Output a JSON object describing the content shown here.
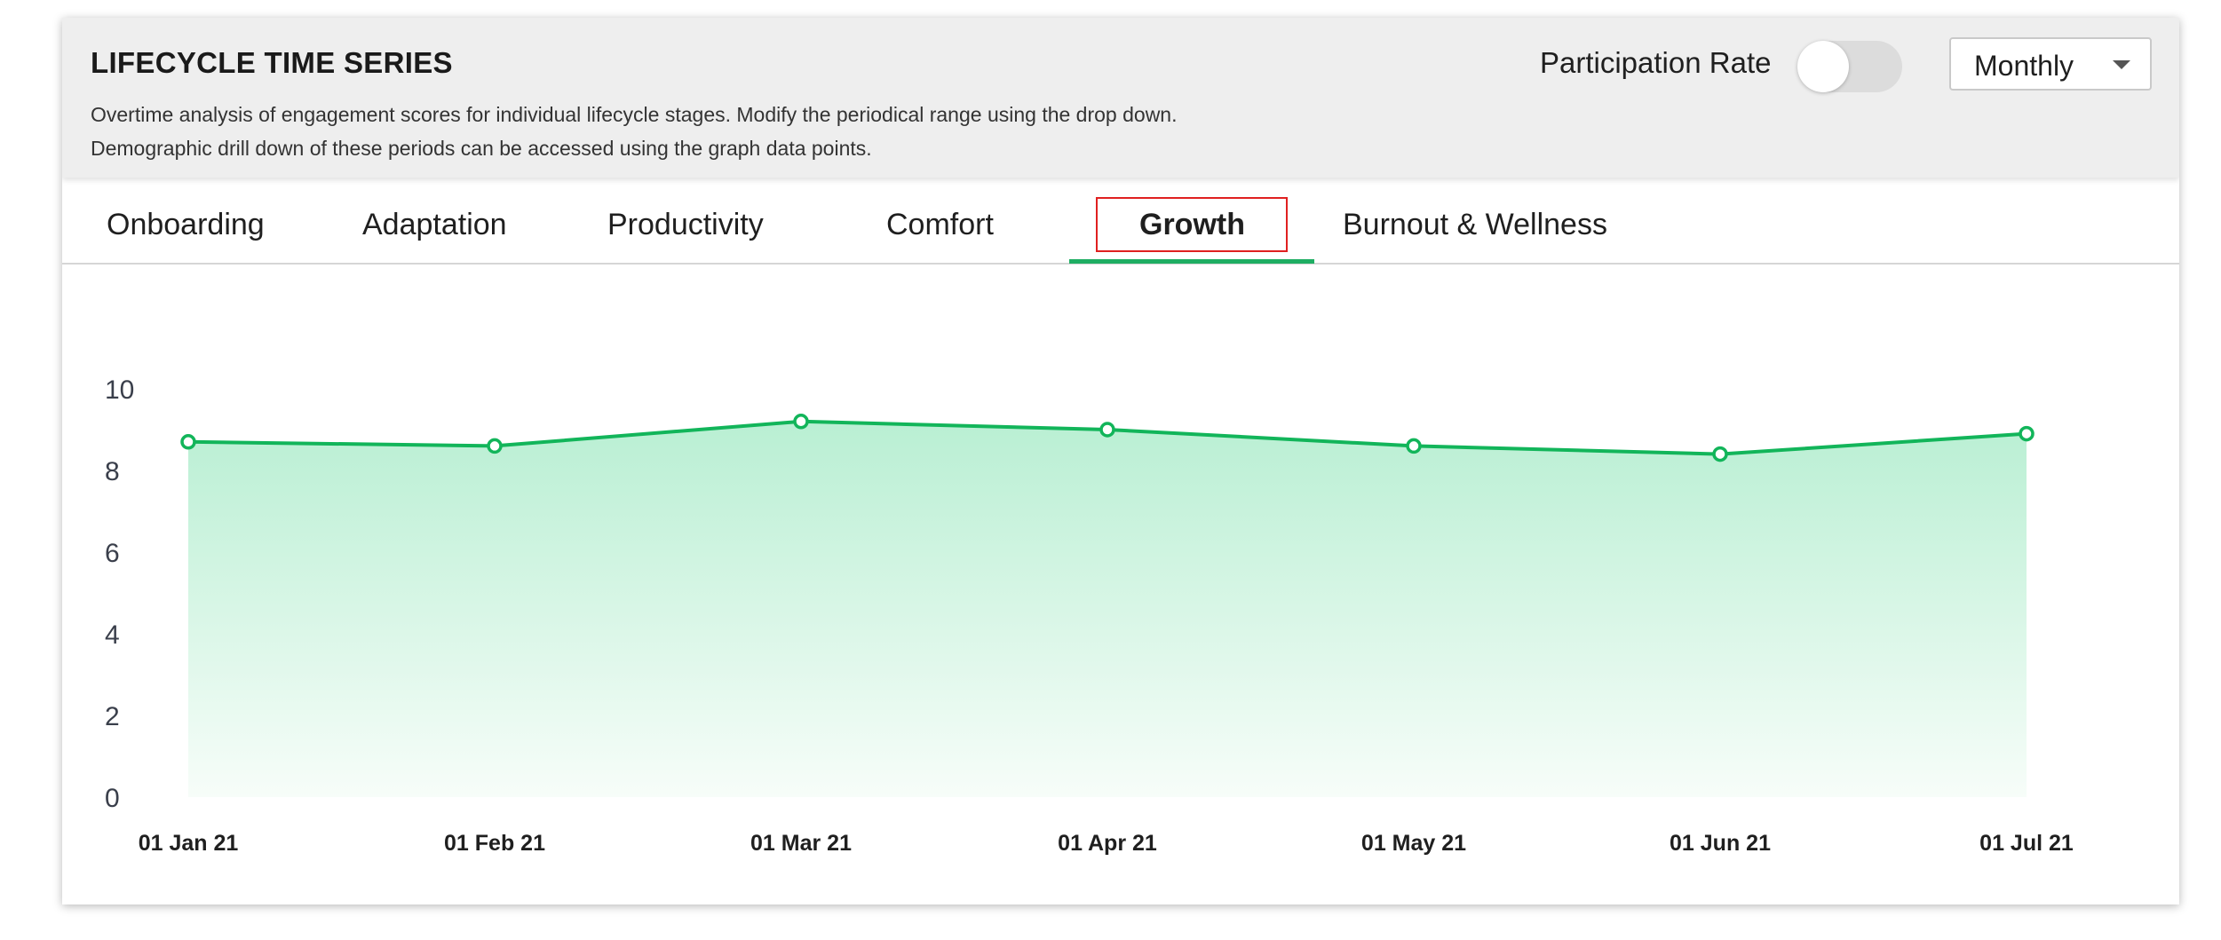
{
  "header": {
    "title": "LIFECYCLE TIME SERIES",
    "description_line1": "Overtime analysis of engagement scores for individual lifecycle stages. Modify the periodical range using the drop down.",
    "description_line2": "Demographic drill down of these periods can be accessed using the graph data points.",
    "participation_rate_label": "Participation Rate",
    "participation_rate_enabled": false,
    "period_select": "Monthly"
  },
  "tabs": [
    {
      "label": "Onboarding",
      "active": false
    },
    {
      "label": "Adaptation",
      "active": false
    },
    {
      "label": "Productivity",
      "active": false
    },
    {
      "label": "Comfort",
      "active": false
    },
    {
      "label": "Growth",
      "active": true
    },
    {
      "label": "Burnout & Wellness",
      "active": false
    }
  ],
  "colors": {
    "line": "#12b55a",
    "area_top": "#b9efd3",
    "area_bottom": "#f7fdf9",
    "tab_underline": "#1fae63",
    "highlight_box": "#e02020"
  },
  "chart_data": {
    "type": "area",
    "x": [
      "01 Jan 21",
      "01 Feb 21",
      "01 Mar 21",
      "01 Apr 21",
      "01 May 21",
      "01 Jun 21",
      "01 Jul 21"
    ],
    "series": [
      {
        "values": [
          8.7,
          8.6,
          9.2,
          9.0,
          8.6,
          8.4,
          8.9
        ]
      }
    ],
    "yticks": [
      10,
      8,
      6,
      4,
      2,
      0
    ],
    "ylim": [
      0,
      10
    ],
    "grid": false,
    "legend": "none"
  }
}
